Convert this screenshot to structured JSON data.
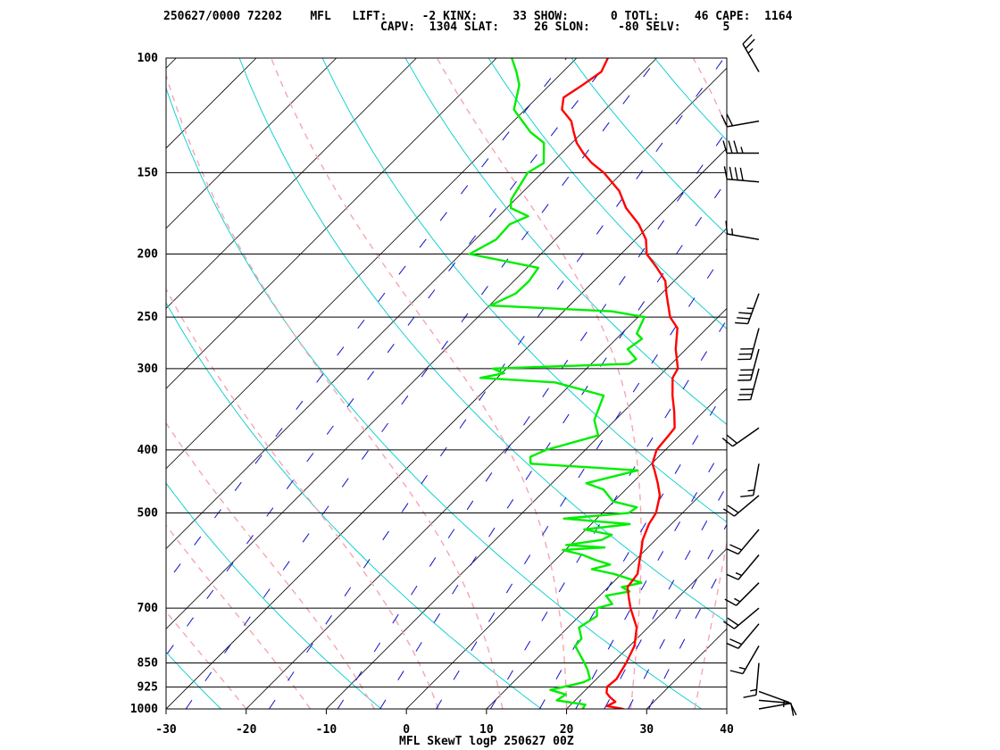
{
  "header": {
    "line1": "250627/0000 72202    MFL   LIFT:     -2 KINX:     33 SHOW:      0 TOTL:     46 CAPE:  1164",
    "line2": "CAPV:  1304 SLAT:     26 SLON:    -80 SELV:      5"
  },
  "chart_data": {
    "type": "line",
    "title": "MFL SkewT logP 250627 00Z",
    "station": "MFL",
    "station_id": "72202",
    "indices": {
      "LIFT": -2,
      "KINX": 33,
      "SHOW": 0,
      "TOTL": 46,
      "CAPE": 1164,
      "CAPV": 1304,
      "SLAT": 26,
      "SLON": -80,
      "SELV": 5
    },
    "pressure_ticks": [
      100,
      150,
      200,
      250,
      300,
      400,
      500,
      700,
      850,
      925,
      1000
    ],
    "temperature_ticks": [
      -30,
      -20,
      -10,
      0,
      10,
      20,
      30,
      40
    ],
    "xlim": [
      -30,
      40
    ],
    "ylim": [
      1000,
      100
    ],
    "y_scale": "log",
    "series": [
      {
        "color": "#ff0000",
        "points": [
          [
            1000,
            27.1
          ],
          [
            990,
            24.7
          ],
          [
            975,
            25.2
          ],
          [
            960,
            24.0
          ],
          [
            945,
            23.0
          ],
          [
            925,
            22.3
          ],
          [
            900,
            22.5
          ],
          [
            850,
            21.7
          ],
          [
            800,
            20.6
          ],
          [
            750,
            18.6
          ],
          [
            700,
            15.4
          ],
          [
            675,
            13.9
          ],
          [
            650,
            12.4
          ],
          [
            620,
            12.0
          ],
          [
            600,
            11.0
          ],
          [
            570,
            9.5
          ],
          [
            550,
            8.4
          ],
          [
            520,
            7.2
          ],
          [
            500,
            6.7
          ],
          [
            470,
            5.0
          ],
          [
            450,
            3.2
          ],
          [
            430,
            1.2
          ],
          [
            420,
            0.1
          ],
          [
            400,
            -1.1
          ],
          [
            380,
            -1.4
          ],
          [
            370,
            -1.6
          ],
          [
            350,
            -3.6
          ],
          [
            330,
            -5.9
          ],
          [
            310,
            -8.1
          ],
          [
            300,
            -8.6
          ],
          [
            280,
            -11.3
          ],
          [
            260,
            -13.7
          ],
          [
            250,
            -16.0
          ],
          [
            230,
            -19.4
          ],
          [
            220,
            -21.1
          ],
          [
            210,
            -23.8
          ],
          [
            200,
            -26.8
          ],
          [
            190,
            -28.7
          ],
          [
            180,
            -31.5
          ],
          [
            170,
            -35.1
          ],
          [
            160,
            -38.1
          ],
          [
            150,
            -42.3
          ],
          [
            145,
            -45.0
          ],
          [
            140,
            -47.3
          ],
          [
            135,
            -49.4
          ],
          [
            130,
            -51.1
          ],
          [
            125,
            -52.8
          ],
          [
            120,
            -55.4
          ],
          [
            115,
            -56.7
          ],
          [
            110,
            -55.9
          ],
          [
            105,
            -55.2
          ],
          [
            100,
            -56.1
          ]
        ]
      },
      {
        "color": "#00ee00",
        "points": [
          [
            1000,
            22.0
          ],
          [
            985,
            21.8
          ],
          [
            970,
            17.7
          ],
          [
            950,
            18.1
          ],
          [
            935,
            15.6
          ],
          [
            925,
            16.9
          ],
          [
            910,
            18.8
          ],
          [
            900,
            19.2
          ],
          [
            870,
            17.7
          ],
          [
            850,
            16.5
          ],
          [
            800,
            13.2
          ],
          [
            780,
            13.1
          ],
          [
            750,
            11.4
          ],
          [
            720,
            12.2
          ],
          [
            700,
            11.2
          ],
          [
            690,
            12.6
          ],
          [
            670,
            10.8
          ],
          [
            660,
            13.2
          ],
          [
            650,
            11.7
          ],
          [
            640,
            13.6
          ],
          [
            620,
            9.0
          ],
          [
            610,
            5.7
          ],
          [
            600,
            7.4
          ],
          [
            590,
            4.9
          ],
          [
            580,
            2.8
          ],
          [
            570,
            -0.3
          ],
          [
            565,
            4.6
          ],
          [
            560,
            -0.5
          ],
          [
            550,
            3.3
          ],
          [
            540,
            3.9
          ],
          [
            530,
            -0.2
          ],
          [
            520,
            4.8
          ],
          [
            510,
            -4.1
          ],
          [
            500,
            3.3
          ],
          [
            490,
            3.6
          ],
          [
            480,
            -0.1
          ],
          [
            460,
            -2.8
          ],
          [
            450,
            -5.7
          ],
          [
            430,
            -0.9
          ],
          [
            420,
            -15.1
          ],
          [
            410,
            -16.0
          ],
          [
            400,
            -14.9
          ],
          [
            380,
            -10.2
          ],
          [
            360,
            -12.6
          ],
          [
            330,
            -14.5
          ],
          [
            315,
            -22.2
          ],
          [
            310,
            -32.1
          ],
          [
            305,
            -29.7
          ],
          [
            300,
            -31.7
          ],
          [
            295,
            -15.3
          ],
          [
            290,
            -15.0
          ],
          [
            280,
            -17.3
          ],
          [
            270,
            -16.8
          ],
          [
            265,
            -18.1
          ],
          [
            250,
            -19.2
          ],
          [
            245,
            -24.0
          ],
          [
            240,
            -39.9
          ],
          [
            230,
            -38.2
          ],
          [
            220,
            -38.1
          ],
          [
            210,
            -38.6
          ],
          [
            200,
            -48.9
          ],
          [
            190,
            -47.4
          ],
          [
            180,
            -47.6
          ],
          [
            175,
            -46.3
          ],
          [
            170,
            -49.5
          ],
          [
            165,
            -50.5
          ],
          [
            150,
            -51.8
          ],
          [
            145,
            -51.0
          ],
          [
            135,
            -53.5
          ],
          [
            130,
            -56.5
          ],
          [
            120,
            -61.4
          ],
          [
            110,
            -63.8
          ],
          [
            105,
            -65.8
          ],
          [
            100,
            -68.1
          ]
        ]
      }
    ],
    "wind_barbs": [
      {
        "p": 1000,
        "dir": 80,
        "spd": 10
      },
      {
        "p": 970,
        "dir": 95,
        "spd": 10
      },
      {
        "p": 940,
        "dir": 110,
        "spd": 5
      },
      {
        "p": 850,
        "dir": 185,
        "spd": 15
      },
      {
        "p": 800,
        "dir": 210,
        "spd": 15
      },
      {
        "p": 740,
        "dir": 220,
        "spd": 20
      },
      {
        "p": 700,
        "dir": 230,
        "spd": 20
      },
      {
        "p": 640,
        "dir": 225,
        "spd": 15
      },
      {
        "p": 580,
        "dir": 220,
        "spd": 15
      },
      {
        "p": 530,
        "dir": 220,
        "spd": 20
      },
      {
        "p": 470,
        "dir": 230,
        "spd": 20
      },
      {
        "p": 420,
        "dir": 190,
        "spd": 15
      },
      {
        "p": 370,
        "dir": 235,
        "spd": 20
      },
      {
        "p": 300,
        "dir": 195,
        "spd": 30
      },
      {
        "p": 280,
        "dir": 195,
        "spd": 30
      },
      {
        "p": 260,
        "dir": 195,
        "spd": 30
      },
      {
        "p": 230,
        "dir": 200,
        "spd": 35
      },
      {
        "p": 190,
        "dir": 280,
        "spd": 15
      },
      {
        "p": 155,
        "dir": 275,
        "spd": 40
      },
      {
        "p": 140,
        "dir": 270,
        "spd": 35
      },
      {
        "p": 125,
        "dir": 260,
        "spd": 20
      },
      {
        "p": 105,
        "dir": 330,
        "spd": 25
      }
    ]
  }
}
